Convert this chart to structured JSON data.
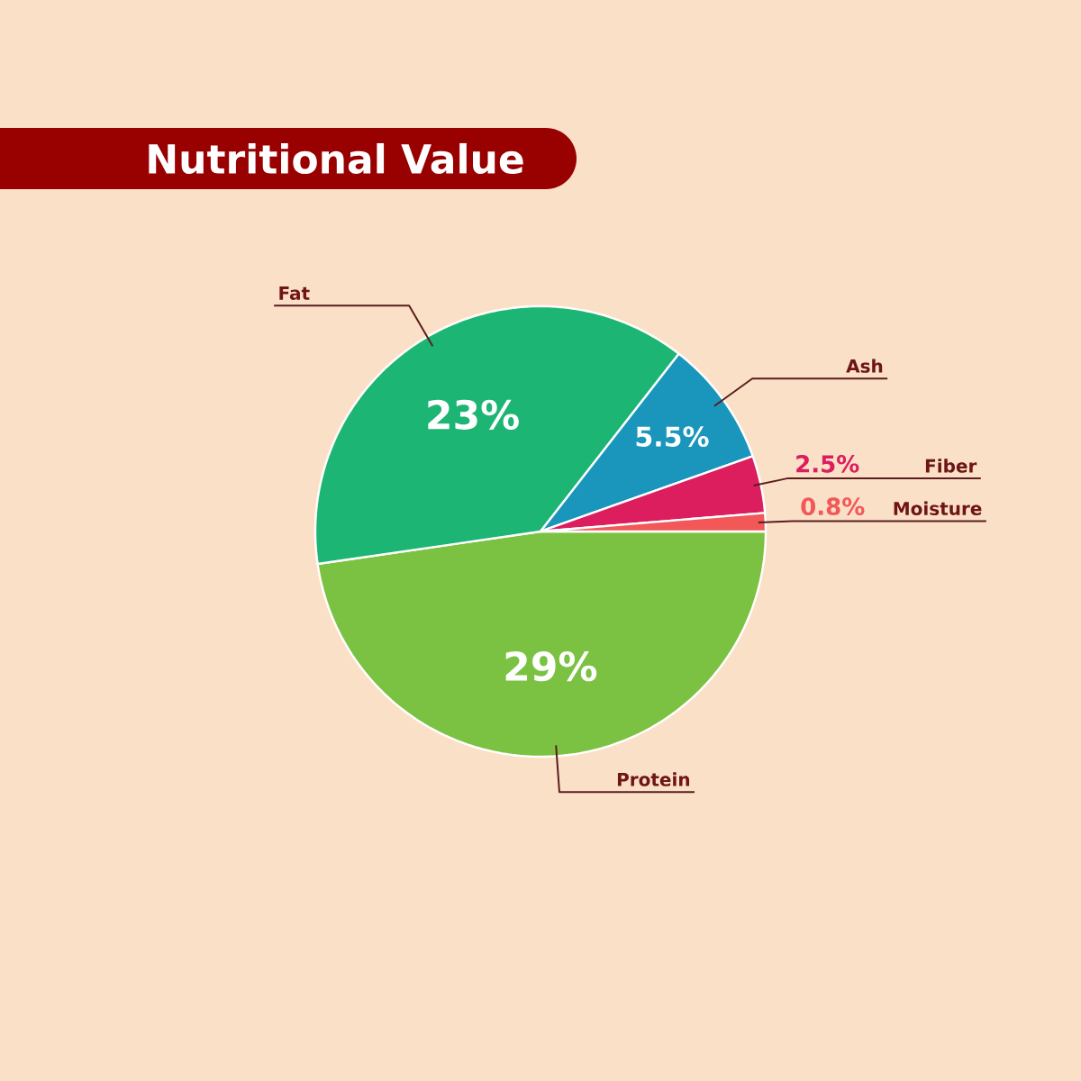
{
  "chart_data": {
    "type": "pie",
    "title": "Nutritional Value",
    "categories": [
      "Protein",
      "Fat",
      "Ash",
      "Fiber",
      "Moisture"
    ],
    "values": [
      29,
      23,
      5.5,
      2.5,
      0.8
    ],
    "value_labels": [
      "29%",
      "23%",
      "5.5%",
      "2.5%",
      "0.8%"
    ],
    "colors": [
      "#7cc242",
      "#1db574",
      "#1a96bd",
      "#dc1e5e",
      "#f25858"
    ]
  }
}
